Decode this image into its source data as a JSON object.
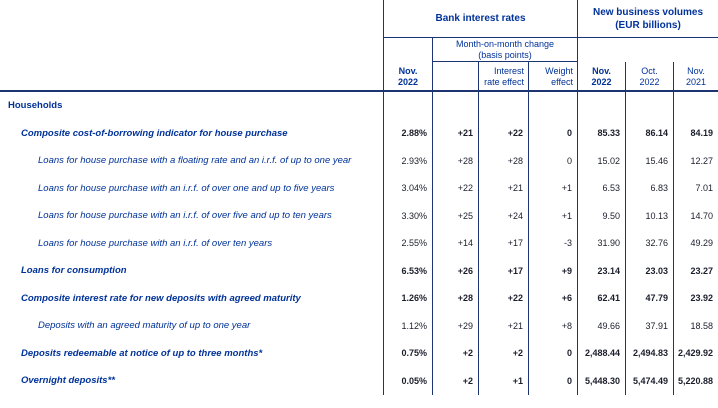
{
  "colors": {
    "ecb_blue": "#003299",
    "number_color": "#1b1e2b",
    "line_color": "#1d3472"
  },
  "header": {
    "bank_interest_rates": "Bank interest rates",
    "new_business_volumes": "New business volumes",
    "eur_billions": "(EUR billions)",
    "mom_change": "Month-on-month change",
    "basis_points": "(basis points)",
    "cols": {
      "rate_nov_l1": "Nov.",
      "rate_nov_l2": "2022",
      "interest_effect_l1": "Interest",
      "interest_effect_l2": "rate effect",
      "weight_effect_l1": "Weight",
      "weight_effect_l2": "effect",
      "vol_nov_l1": "Nov.",
      "vol_nov_l2": "2022",
      "vol_oct_l1": "Oct.",
      "vol_oct_l2": "2022",
      "vol_prev_l1": "Nov.",
      "vol_prev_l2": "2021"
    }
  },
  "rows": [
    {
      "label": "Households",
      "indent": 0,
      "bold": true,
      "rate": "",
      "change": "",
      "interest_effect": "",
      "weight_effect": "",
      "vol_nov_2022": "",
      "vol_oct_2022": "",
      "vol_nov_2021": ""
    },
    {
      "label": "Composite cost-of-borrowing indicator for house purchase",
      "indent": 1,
      "bold": true,
      "rate": "2.88%",
      "change": "+21",
      "interest_effect": "+22",
      "weight_effect": "0",
      "vol_nov_2022": "85.33",
      "vol_oct_2022": "86.14",
      "vol_nov_2021": "84.19"
    },
    {
      "label": "Loans for house purchase with a floating rate and an i.r.f. of up to one year",
      "indent": 2,
      "bold": false,
      "rate": "2.93%",
      "change": "+28",
      "interest_effect": "+28",
      "weight_effect": "0",
      "vol_nov_2022": "15.02",
      "vol_oct_2022": "15.46",
      "vol_nov_2021": "12.27"
    },
    {
      "label": "Loans for house purchase with an i.r.f. of over one and up to five years",
      "indent": 2,
      "bold": false,
      "rate": "3.04%",
      "change": "+22",
      "interest_effect": "+21",
      "weight_effect": "+1",
      "vol_nov_2022": "6.53",
      "vol_oct_2022": "6.83",
      "vol_nov_2021": "7.01"
    },
    {
      "label": "Loans for house purchase with an i.r.f. of over five and up to ten years",
      "indent": 2,
      "bold": false,
      "rate": "3.30%",
      "change": "+25",
      "interest_effect": "+24",
      "weight_effect": "+1",
      "vol_nov_2022": "9.50",
      "vol_oct_2022": "10.13",
      "vol_nov_2021": "14.70"
    },
    {
      "label": "Loans for house purchase with an i.r.f. of over ten years",
      "indent": 2,
      "bold": false,
      "rate": "2.55%",
      "change": "+14",
      "interest_effect": "+17",
      "weight_effect": "-3",
      "vol_nov_2022": "31.90",
      "vol_oct_2022": "32.76",
      "vol_nov_2021": "49.29"
    },
    {
      "label": "Loans for consumption",
      "indent": 1,
      "bold": true,
      "rate": "6.53%",
      "change": "+26",
      "interest_effect": "+17",
      "weight_effect": "+9",
      "vol_nov_2022": "23.14",
      "vol_oct_2022": "23.03",
      "vol_nov_2021": "23.27"
    },
    {
      "label": "Composite interest rate for new deposits with agreed maturity",
      "indent": 1,
      "bold": true,
      "rate": "1.26%",
      "change": "+28",
      "interest_effect": "+22",
      "weight_effect": "+6",
      "vol_nov_2022": "62.41",
      "vol_oct_2022": "47.79",
      "vol_nov_2021": "23.92"
    },
    {
      "label": "Deposits with an agreed maturity of up to one year",
      "indent": 2,
      "bold": false,
      "rate": "1.12%",
      "change": "+29",
      "interest_effect": "+21",
      "weight_effect": "+8",
      "vol_nov_2022": "49.66",
      "vol_oct_2022": "37.91",
      "vol_nov_2021": "18.58"
    },
    {
      "label": "Deposits redeemable at notice of up to three months*",
      "indent": 1,
      "bold": true,
      "rate": "0.75%",
      "change": "+2",
      "interest_effect": "+2",
      "weight_effect": "0",
      "vol_nov_2022": "2,488.44",
      "vol_oct_2022": "2,494.83",
      "vol_nov_2021": "2,429.92"
    },
    {
      "label": "Overnight deposits**",
      "indent": 1,
      "bold": true,
      "rate": "0.05%",
      "change": "+2",
      "interest_effect": "+1",
      "weight_effect": "0",
      "vol_nov_2022": "5,448.30",
      "vol_oct_2022": "5,474.49",
      "vol_nov_2021": "5,220.88"
    }
  ]
}
